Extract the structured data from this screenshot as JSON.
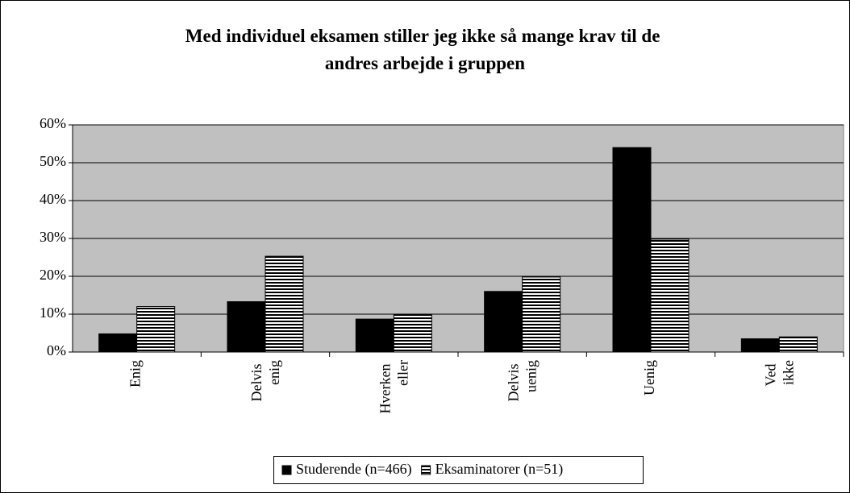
{
  "chart_data": {
    "type": "bar",
    "title": "Med individuel eksamen stiller jeg ikke så mange krav til de andres arbejde i gruppen",
    "categories": [
      "Enig",
      "Delvis enig",
      "Hverken eller",
      "Delvis uenig",
      "Uenig",
      "Ved ikke"
    ],
    "series": [
      {
        "name": "Studerende (n=466)",
        "color": "#000000",
        "fill": "solid",
        "values": [
          4.8,
          13.3,
          8.7,
          16,
          54,
          3.5
        ]
      },
      {
        "name": "Eksaminatorer (n=51)",
        "color": "#000000",
        "fill": "horizontal-stripes",
        "values": [
          12,
          25.3,
          10,
          19.8,
          29.8,
          4
        ]
      }
    ],
    "ylim": [
      0,
      60
    ],
    "yticks": [
      {
        "value": 0,
        "label": "0%"
      },
      {
        "value": 10,
        "label": "10%"
      },
      {
        "value": 20,
        "label": "20%"
      },
      {
        "value": 30,
        "label": "30%"
      },
      {
        "value": 40,
        "label": "40%"
      },
      {
        "value": 50,
        "label": "50%"
      },
      {
        "value": 60,
        "label": "60%"
      }
    ],
    "grid": true,
    "legend": "bottom"
  }
}
